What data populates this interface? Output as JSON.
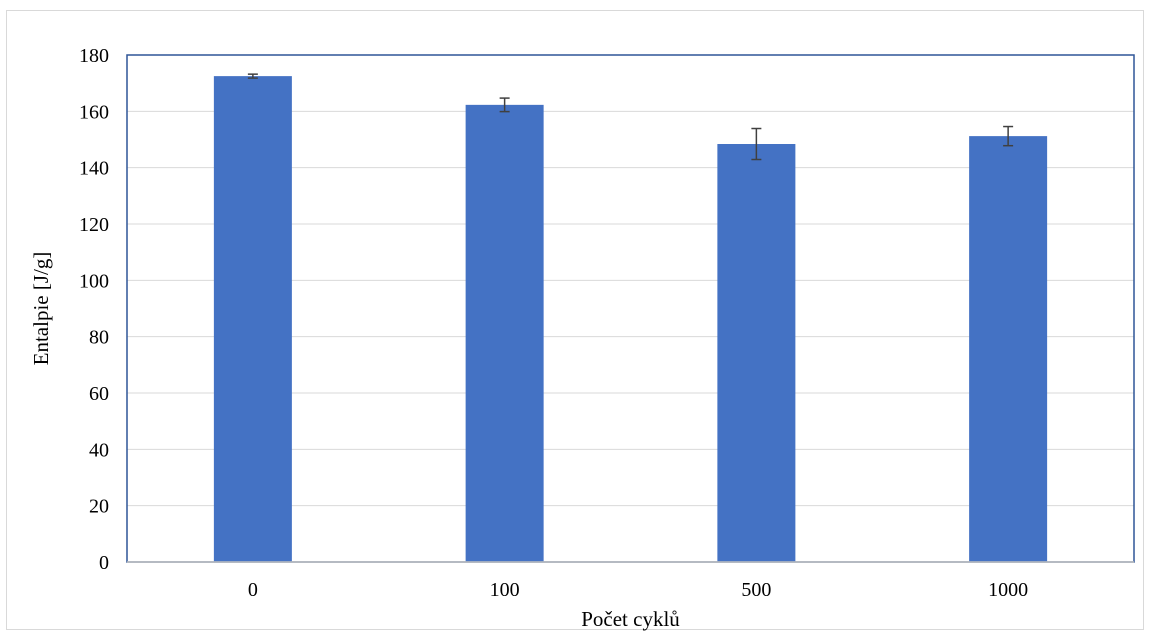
{
  "chart_data": {
    "type": "bar",
    "categories": [
      "0",
      "100",
      "500",
      "1000"
    ],
    "values": [
      172.5,
      162.3,
      148.4,
      151.2
    ],
    "errors": [
      0.7,
      2.4,
      5.5,
      3.4
    ],
    "xlabel": "Počet cyklů",
    "ylabel": "Entalpie [J/g]",
    "ylim": [
      0,
      180
    ],
    "yticks": [
      0,
      20,
      40,
      60,
      80,
      100,
      120,
      140,
      160,
      180
    ],
    "grid": true,
    "legend": "none",
    "colors": {
      "bar": "#4472C4",
      "plot_border": "#2F5597",
      "grid": "#d9d9d9",
      "error_bar": "#404040"
    }
  }
}
